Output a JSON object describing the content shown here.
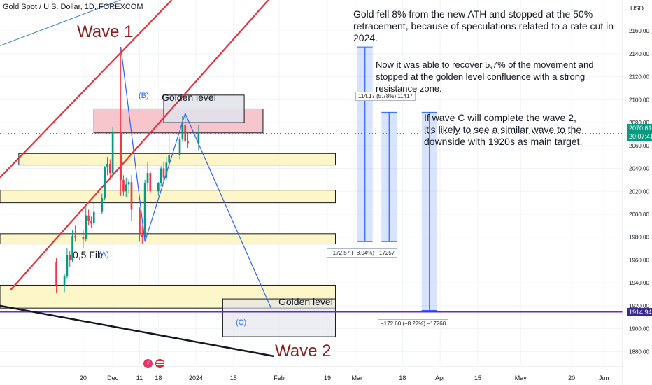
{
  "header": {
    "symbol_title": "Gold Spot / U.S. Dollar, 1D, FOREXCOM"
  },
  "annotations": {
    "note1": "Gold fell 8% from the new ATH and stopped at the 50% retracement, because of speculations related to a rate cut in 2024.",
    "note2": "Now it was able to recover 5,7% of the movement and stopped at the golden level confluence with a strong resistance zone.",
    "note3": "If wave C will complete the wave 2, it's likely to see a similar wave to the downside with 1920s as main target.",
    "wave1": "Wave 1",
    "wave2": "Wave 2",
    "golden1": "Golden level",
    "golden2": "Golden level",
    "fib": "0,5 Fib",
    "pointA": "(A)",
    "pointB": "(B)",
    "pointC": "(C)"
  },
  "measurements": {
    "m1": "114.17 (5.78%) 11417",
    "m2": "−172.57 (−8.04%) −17257",
    "m3": "−172.60 (−8.27%) −17260"
  },
  "price_tags": {
    "current": "2070.61",
    "countdown": "20:07:41",
    "target": "1914.94"
  },
  "colors": {
    "up": "#089981",
    "down": "#f23645",
    "trend_red": "#e8303c",
    "wave_blue": "#2962ff",
    "zone_yellow": "#fdf6c8",
    "zone_pink": "#f7c6cc",
    "target_line": "#5b2fc9"
  },
  "icons": [
    "flash-icon",
    "us-flag-icon"
  ],
  "chart_data": {
    "type": "candlestick",
    "title": "Gold Spot / U.S. Dollar, 1D, FOREXCOM",
    "currency": "USD",
    "y_ticks": [
      1880,
      1900,
      1920,
      1940,
      1960,
      1980,
      2000,
      2020,
      2040,
      2060,
      2080,
      2100,
      2120,
      2140,
      2160
    ],
    "ylim": [
      1868,
      2187
    ],
    "x_range": [
      "2023-10-20",
      "2024-06-08"
    ],
    "x_ticks": [
      {
        "label": "20",
        "date": "2023-11-20"
      },
      {
        "label": "Dec",
        "date": "2023-12-01"
      },
      {
        "label": "11",
        "date": "2023-12-11"
      },
      {
        "label": "18",
        "date": "2023-12-18"
      },
      {
        "label": "2024",
        "date": "2024-01-01"
      },
      {
        "label": "15",
        "date": "2024-01-15"
      },
      {
        "label": "Feb",
        "date": "2024-02-01"
      },
      {
        "label": "19",
        "date": "2024-02-19"
      },
      {
        "label": "Mar",
        "date": "2024-03-01"
      },
      {
        "label": "18",
        "date": "2024-03-18"
      },
      {
        "label": "Apr",
        "date": "2024-04-01"
      },
      {
        "label": "15",
        "date": "2024-04-15"
      },
      {
        "label": "May",
        "date": "2024-05-01"
      },
      {
        "label": "20",
        "date": "2024-05-20"
      },
      {
        "label": "Jun",
        "date": "2024-06-01"
      }
    ],
    "candles": [
      {
        "t": "2023-11-10",
        "o": 1958,
        "h": 1962,
        "l": 1931,
        "c": 1938
      },
      {
        "t": "2023-11-13",
        "o": 1938,
        "h": 1948,
        "l": 1932,
        "c": 1946
      },
      {
        "t": "2023-11-14",
        "o": 1946,
        "h": 1970,
        "l": 1944,
        "c": 1964
      },
      {
        "t": "2023-11-15",
        "o": 1964,
        "h": 1968,
        "l": 1954,
        "c": 1960
      },
      {
        "t": "2023-11-16",
        "o": 1960,
        "h": 1986,
        "l": 1958,
        "c": 1981
      },
      {
        "t": "2023-11-17",
        "o": 1981,
        "h": 1990,
        "l": 1976,
        "c": 1980
      },
      {
        "t": "2023-11-20",
        "o": 1980,
        "h": 1986,
        "l": 1970,
        "c": 1978
      },
      {
        "t": "2023-11-21",
        "o": 1978,
        "h": 2006,
        "l": 1976,
        "c": 1999
      },
      {
        "t": "2023-11-22",
        "o": 1999,
        "h": 2004,
        "l": 1990,
        "c": 1994
      },
      {
        "t": "2023-11-23",
        "o": 1994,
        "h": 1998,
        "l": 1988,
        "c": 1992
      },
      {
        "t": "2023-11-24",
        "o": 1992,
        "h": 2010,
        "l": 1990,
        "c": 2002
      },
      {
        "t": "2023-11-27",
        "o": 2002,
        "h": 2018,
        "l": 2000,
        "c": 2014
      },
      {
        "t": "2023-11-28",
        "o": 2014,
        "h": 2042,
        "l": 2012,
        "c": 2041
      },
      {
        "t": "2023-11-29",
        "o": 2041,
        "h": 2050,
        "l": 2034,
        "c": 2044
      },
      {
        "t": "2023-11-30",
        "o": 2044,
        "h": 2048,
        "l": 2030,
        "c": 2036
      },
      {
        "t": "2023-12-01",
        "o": 2036,
        "h": 2076,
        "l": 2032,
        "c": 2072
      },
      {
        "t": "2023-12-04",
        "o": 2072,
        "h": 2146,
        "l": 2016,
        "c": 2030
      },
      {
        "t": "2023-12-05",
        "o": 2030,
        "h": 2034,
        "l": 2016,
        "c": 2020
      },
      {
        "t": "2023-12-06",
        "o": 2020,
        "h": 2032,
        "l": 2015,
        "c": 2026
      },
      {
        "t": "2023-12-07",
        "o": 2026,
        "h": 2030,
        "l": 2018,
        "c": 2028
      },
      {
        "t": "2023-12-08",
        "o": 2028,
        "h": 2034,
        "l": 1994,
        "c": 2004
      },
      {
        "t": "2023-12-11",
        "o": 2004,
        "h": 2006,
        "l": 1976,
        "c": 1982
      },
      {
        "t": "2023-12-12",
        "o": 1982,
        "h": 1990,
        "l": 1974,
        "c": 1980
      },
      {
        "t": "2023-12-13",
        "o": 1980,
        "h": 2030,
        "l": 1978,
        "c": 2027
      },
      {
        "t": "2023-12-14",
        "o": 2027,
        "h": 2046,
        "l": 2020,
        "c": 2036
      },
      {
        "t": "2023-12-15",
        "o": 2036,
        "h": 2038,
        "l": 2018,
        "c": 2020
      },
      {
        "t": "2023-12-18",
        "o": 2020,
        "h": 2028,
        "l": 2016,
        "c": 2027
      },
      {
        "t": "2023-12-19",
        "o": 2027,
        "h": 2042,
        "l": 2024,
        "c": 2040
      },
      {
        "t": "2023-12-20",
        "o": 2040,
        "h": 2046,
        "l": 2028,
        "c": 2032
      },
      {
        "t": "2023-12-21",
        "o": 2032,
        "h": 2050,
        "l": 2030,
        "c": 2045
      },
      {
        "t": "2023-12-22",
        "o": 2045,
        "h": 2070,
        "l": 2042,
        "c": 2052
      },
      {
        "t": "2023-12-26",
        "o": 2052,
        "h": 2068,
        "l": 2048,
        "c": 2066
      },
      {
        "t": "2023-12-27",
        "o": 2066,
        "h": 2086,
        "l": 2064,
        "c": 2078
      },
      {
        "t": "2023-12-28",
        "o": 2078,
        "h": 2088,
        "l": 2062,
        "c": 2064
      },
      {
        "t": "2023-12-29",
        "o": 2064,
        "h": 2070,
        "l": 2058,
        "c": 2062
      },
      {
        "t": "2024-01-02",
        "o": 2062,
        "h": 2078,
        "l": 2056,
        "c": 2070.61
      }
    ]
  }
}
